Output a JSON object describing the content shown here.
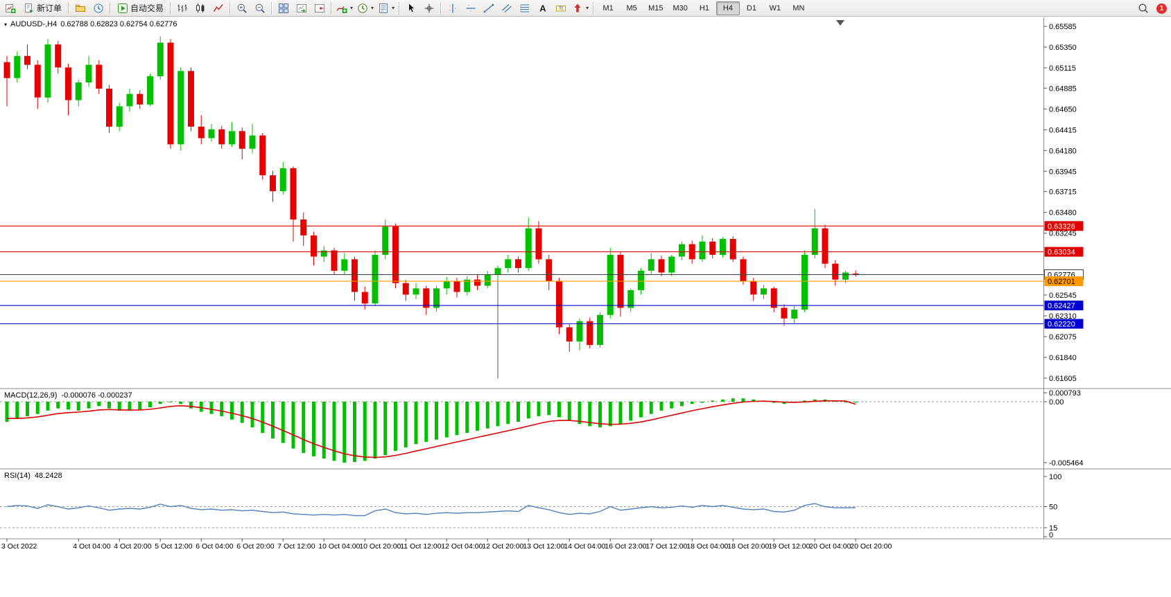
{
  "window": {
    "title": "AUDUSD-,H4",
    "ohlc": "0.62788 0.62823 0.62754 0.62776"
  },
  "toolbar": {
    "groups": [
      {
        "items": [
          {
            "name": "new-chart",
            "icon": "new-chart"
          },
          {
            "name": "new-order",
            "icon": "new-order",
            "label": "新订单"
          }
        ]
      },
      {
        "items": [
          {
            "name": "profiles",
            "icon": "profiles"
          },
          {
            "name": "market-watch",
            "icon": "market-watch"
          }
        ]
      },
      {
        "items": [
          {
            "name": "autotrading",
            "icon": "autotrading",
            "label": "自动交易"
          }
        ]
      },
      {
        "items": [
          {
            "name": "bar-chart",
            "icon": "bar-chart"
          },
          {
            "name": "candlestick-chart",
            "icon": "candlestick-chart"
          },
          {
            "name": "line-chart",
            "icon": "line-chart"
          }
        ]
      },
      {
        "items": [
          {
            "name": "zoom-in",
            "icon": "zoom-in"
          },
          {
            "name": "zoom-out",
            "icon": "zoom-out"
          }
        ]
      },
      {
        "items": [
          {
            "name": "tile-windows",
            "icon": "tile-windows"
          },
          {
            "name": "auto-scroll",
            "icon": "auto-scroll"
          },
          {
            "name": "chart-shift",
            "icon": "chart-shift"
          }
        ]
      },
      {
        "items": [
          {
            "name": "indicators",
            "icon": "indicators",
            "dropdown": true
          },
          {
            "name": "periods",
            "icon": "periods",
            "dropdown": true
          },
          {
            "name": "templates",
            "icon": "templates",
            "dropdown": true
          }
        ]
      },
      {
        "items": [
          {
            "name": "cursor",
            "icon": "cursor"
          },
          {
            "name": "crosshair",
            "icon": "crosshair"
          }
        ]
      },
      {
        "items": [
          {
            "name": "vertical-line",
            "icon": "vertical-line"
          },
          {
            "name": "horizontal-line",
            "icon": "horizontal-line"
          },
          {
            "name": "trendline",
            "icon": "trendline"
          },
          {
            "name": "equidistant-channel",
            "icon": "channel"
          },
          {
            "name": "fibonacci",
            "icon": "fibonacci"
          },
          {
            "name": "text",
            "icon": "text"
          },
          {
            "name": "text-label",
            "icon": "text-label"
          },
          {
            "name": "arrows",
            "icon": "arrows",
            "dropdown": true
          }
        ]
      }
    ],
    "timeframes": [
      "M1",
      "M5",
      "M15",
      "M30",
      "H1",
      "H4",
      "D1",
      "W1",
      "MN"
    ],
    "active_timeframe": "H4",
    "notification_badge": "1"
  },
  "chart_data": [
    {
      "type": "candlestick",
      "symbol": "AUDUSD-",
      "timeframe": "H4",
      "ohlc_readout": {
        "open": "0.62788",
        "high": "0.62823",
        "low": "0.62754",
        "close": "0.62776"
      },
      "colors": {
        "bull": "#00c000",
        "bear": "#e60000"
      },
      "ylim": [
        0.61605,
        0.65585
      ],
      "y_axis_labels": [
        "0.65585",
        "0.65350",
        "0.65115",
        "0.64885",
        "0.64650",
        "0.64415",
        "0.64180",
        "0.63945",
        "0.63715",
        "0.63480",
        "0.63245",
        "0.62545",
        "0.62310",
        "0.62075",
        "0.61840",
        "0.61605"
      ],
      "x_labels": [
        {
          "i": 0,
          "t": "3 Oct 2022"
        },
        {
          "i": 7,
          "t": "4 Oct 04:00"
        },
        {
          "i": 11,
          "t": "4 Oct 20:00"
        },
        {
          "i": 15,
          "t": "5 Oct 12:00"
        },
        {
          "i": 19,
          "t": "6 Oct 04:00"
        },
        {
          "i": 23,
          "t": "6 Oct 20:00"
        },
        {
          "i": 27,
          "t": "7 Oct 12:00"
        },
        {
          "i": 31,
          "t": "10 Oct 04:00"
        },
        {
          "i": 35,
          "t": "10 Oct 20:00"
        },
        {
          "i": 39,
          "t": "11 Oct 12:00"
        },
        {
          "i": 43,
          "t": "12 Oct 04:00"
        },
        {
          "i": 47,
          "t": "12 Oct 20:00"
        },
        {
          "i": 51,
          "t": "13 Oct 12:00"
        },
        {
          "i": 55,
          "t": "14 Oct 04:00"
        },
        {
          "i": 59,
          "t": "16 Oct 23:00"
        },
        {
          "i": 63,
          "t": "17 Oct 12:00"
        },
        {
          "i": 67,
          "t": "18 Oct 04:00"
        },
        {
          "i": 71,
          "t": "18 Oct 20:00"
        },
        {
          "i": 75,
          "t": "19 Oct 12:00"
        },
        {
          "i": 79,
          "t": "20 Oct 04:00"
        },
        {
          "i": 83,
          "t": "20 Oct 20:00"
        }
      ],
      "levels": [
        {
          "price": 0.63326,
          "label": "0.63326",
          "line_color": "#e00000",
          "tag_bg": "#e00000",
          "tag_fg": "#ffffff",
          "role": "resistance"
        },
        {
          "price": 0.63034,
          "label": "0.63034",
          "line_color": "#e00000",
          "tag_bg": "#e00000",
          "tag_fg": "#ffffff",
          "role": "resistance"
        },
        {
          "price": 0.62776,
          "label": "0.62776",
          "line_color": "#404040",
          "tag_bg": "#ffffff",
          "tag_fg": "#000000",
          "tag_border": "#404040",
          "role": "current-price"
        },
        {
          "price": 0.62701,
          "label": "0.62701",
          "line_color": "#ff9900",
          "tag_bg": "#ff9900",
          "tag_fg": "#000000",
          "role": "orange-level"
        },
        {
          "price": 0.62427,
          "label": "0.62427",
          "line_color": "#0000d0",
          "tag_bg": "#0000d0",
          "tag_fg": "#ffffff",
          "role": "support"
        },
        {
          "price": 0.6222,
          "label": "0.62220",
          "line_color": "#0000d0",
          "tag_bg": "#0000d0",
          "tag_fg": "#ffffff",
          "role": "support"
        }
      ],
      "vline_object": {
        "index": 48,
        "from_price": 0.628,
        "to_price": 0.616
      },
      "candles": [
        [
          0.6518,
          0.6525,
          0.6468,
          0.65
        ],
        [
          0.65,
          0.653,
          0.6495,
          0.6525
        ],
        [
          0.6525,
          0.6538,
          0.651,
          0.6515
        ],
        [
          0.6515,
          0.652,
          0.6465,
          0.6478
        ],
        [
          0.6478,
          0.6544,
          0.6472,
          0.6538
        ],
        [
          0.6538,
          0.6542,
          0.6505,
          0.6512
        ],
        [
          0.6512,
          0.6516,
          0.6458,
          0.6475
        ],
        [
          0.6475,
          0.6498,
          0.6468,
          0.6495
        ],
        [
          0.6495,
          0.6525,
          0.649,
          0.6515
        ],
        [
          0.6515,
          0.652,
          0.6482,
          0.6488
        ],
        [
          0.6488,
          0.6492,
          0.6438,
          0.6445
        ],
        [
          0.6445,
          0.6472,
          0.644,
          0.6468
        ],
        [
          0.6468,
          0.6488,
          0.6462,
          0.6482
        ],
        [
          0.6482,
          0.6486,
          0.6465,
          0.647
        ],
        [
          0.647,
          0.6505,
          0.6468,
          0.6502
        ],
        [
          0.6502,
          0.6547,
          0.6498,
          0.654
        ],
        [
          0.654,
          0.6544,
          0.642,
          0.6425
        ],
        [
          0.6425,
          0.6512,
          0.6418,
          0.6508
        ],
        [
          0.6508,
          0.6512,
          0.644,
          0.6445
        ],
        [
          0.6445,
          0.6458,
          0.6425,
          0.6432
        ],
        [
          0.6432,
          0.6448,
          0.6428,
          0.6442
        ],
        [
          0.6442,
          0.6446,
          0.642,
          0.6425
        ],
        [
          0.6425,
          0.645,
          0.6422,
          0.644
        ],
        [
          0.644,
          0.6444,
          0.6408,
          0.642
        ],
        [
          0.642,
          0.6448,
          0.6415,
          0.6435
        ],
        [
          0.6435,
          0.6438,
          0.6385,
          0.639
        ],
        [
          0.639,
          0.6395,
          0.636,
          0.6372
        ],
        [
          0.6372,
          0.6405,
          0.6368,
          0.6398
        ],
        [
          0.6398,
          0.64,
          0.6315,
          0.634
        ],
        [
          0.634,
          0.6348,
          0.631,
          0.6322
        ],
        [
          0.6322,
          0.6326,
          0.6288,
          0.6298
        ],
        [
          0.6298,
          0.631,
          0.6292,
          0.6305
        ],
        [
          0.6305,
          0.6308,
          0.6278,
          0.6282
        ],
        [
          0.6282,
          0.6302,
          0.6278,
          0.6295
        ],
        [
          0.6295,
          0.6298,
          0.6248,
          0.6258
        ],
        [
          0.6258,
          0.6264,
          0.6238,
          0.6245
        ],
        [
          0.6245,
          0.6305,
          0.6242,
          0.63
        ],
        [
          0.63,
          0.634,
          0.6295,
          0.6332
        ],
        [
          0.6332,
          0.6335,
          0.6262,
          0.6268
        ],
        [
          0.6268,
          0.6272,
          0.6248,
          0.6255
        ],
        [
          0.6255,
          0.6268,
          0.625,
          0.6262
        ],
        [
          0.6262,
          0.6265,
          0.6232,
          0.624
        ],
        [
          0.624,
          0.6265,
          0.6236,
          0.6262
        ],
        [
          0.6262,
          0.6275,
          0.6255,
          0.627
        ],
        [
          0.627,
          0.6274,
          0.6252,
          0.6258
        ],
        [
          0.6258,
          0.6276,
          0.6254,
          0.6272
        ],
        [
          0.6272,
          0.6278,
          0.626,
          0.6265
        ],
        [
          0.6265,
          0.6282,
          0.6262,
          0.6278
        ],
        [
          0.6278,
          0.6288,
          0.6272,
          0.6285
        ],
        [
          0.6285,
          0.63,
          0.628,
          0.6295
        ],
        [
          0.6295,
          0.6298,
          0.628,
          0.6285
        ],
        [
          0.6285,
          0.6342,
          0.6282,
          0.633
        ],
        [
          0.633,
          0.6338,
          0.629,
          0.6295
        ],
        [
          0.6295,
          0.63,
          0.626,
          0.627
        ],
        [
          0.627,
          0.6274,
          0.621,
          0.6218
        ],
        [
          0.6218,
          0.6222,
          0.619,
          0.6202
        ],
        [
          0.6202,
          0.6228,
          0.6192,
          0.6225
        ],
        [
          0.6225,
          0.6229,
          0.6194,
          0.6198
        ],
        [
          0.6198,
          0.6235,
          0.6195,
          0.6232
        ],
        [
          0.6232,
          0.6308,
          0.6228,
          0.63
        ],
        [
          0.63,
          0.6304,
          0.623,
          0.624
        ],
        [
          0.624,
          0.6262,
          0.6235,
          0.626
        ],
        [
          0.626,
          0.6285,
          0.6255,
          0.6282
        ],
        [
          0.6282,
          0.6302,
          0.6278,
          0.6295
        ],
        [
          0.6295,
          0.6299,
          0.6276,
          0.628
        ],
        [
          0.628,
          0.63,
          0.6276,
          0.6298
        ],
        [
          0.6298,
          0.6315,
          0.6294,
          0.6312
        ],
        [
          0.6312,
          0.6316,
          0.629,
          0.6295
        ],
        [
          0.6295,
          0.6322,
          0.6292,
          0.6315
        ],
        [
          0.6315,
          0.6319,
          0.6296,
          0.63
        ],
        [
          0.63,
          0.632,
          0.6297,
          0.6318
        ],
        [
          0.6318,
          0.6321,
          0.6292,
          0.6295
        ],
        [
          0.6295,
          0.6298,
          0.6266,
          0.627
        ],
        [
          0.627,
          0.6274,
          0.6248,
          0.6255
        ],
        [
          0.6255,
          0.6266,
          0.625,
          0.6262
        ],
        [
          0.6262,
          0.6264,
          0.6235,
          0.624
        ],
        [
          0.624,
          0.6244,
          0.622,
          0.6228
        ],
        [
          0.6228,
          0.6242,
          0.6222,
          0.6238
        ],
        [
          0.6238,
          0.6305,
          0.6235,
          0.63
        ],
        [
          0.63,
          0.6352,
          0.6296,
          0.633
        ],
        [
          0.633,
          0.6334,
          0.6285,
          0.629
        ],
        [
          0.629,
          0.6294,
          0.6265,
          0.6272
        ],
        [
          0.6272,
          0.6282,
          0.6268,
          0.628
        ],
        [
          0.62788,
          0.62823,
          0.62754,
          0.62776
        ]
      ]
    },
    {
      "type": "macd",
      "label": "MACD(12,26,9)",
      "values_text": "-0.000076 -0.000237",
      "colors": {
        "histogram": "#00c000",
        "signal": "#e00000"
      },
      "axis": [
        {
          "v": 0.000793,
          "t": "0.000793"
        },
        {
          "v": 0,
          "t": "0.00"
        },
        {
          "v": -0.005464,
          "t": "-0.005464"
        }
      ],
      "ylim": [
        -0.005464,
        0.000793
      ],
      "histogram": [
        -0.0018,
        -0.0015,
        -0.0013,
        -0.0011,
        -0.0008,
        -0.0006,
        -0.0007,
        -0.0008,
        -0.0006,
        -0.0004,
        -0.0006,
        -0.0008,
        -0.0008,
        -0.0007,
        -0.0005,
        -0.0002,
        0,
        -0.0002,
        -0.0006,
        -0.0009,
        -0.0011,
        -0.0013,
        -0.0016,
        -0.0019,
        -0.0023,
        -0.0028,
        -0.0033,
        -0.0037,
        -0.0042,
        -0.0046,
        -0.0049,
        -0.0051,
        -0.0053,
        -0.005464,
        -0.0054,
        -0.0053,
        -0.0051,
        -0.0048,
        -0.0044,
        -0.0041,
        -0.0038,
        -0.0036,
        -0.0034,
        -0.0032,
        -0.003,
        -0.0028,
        -0.0026,
        -0.0024,
        -0.0022,
        -0.002,
        -0.0018,
        -0.0015,
        -0.0013,
        -0.0012,
        -0.0014,
        -0.0017,
        -0.002,
        -0.0022,
        -0.0023,
        -0.0022,
        -0.002,
        -0.0017,
        -0.0014,
        -0.0011,
        -0.0008,
        -0.0006,
        -0.0004,
        -0.0002,
        -0.0001,
        0.0001,
        0.0002,
        0.0003,
        0.0003,
        0.0002,
        0.0001,
        -0.0001,
        -0.0002,
        -0.0001,
        0.0001,
        0.0002,
        0.0002,
        0.0001,
        0,
        -7.6e-05
      ],
      "signal": [
        -0.0015,
        -0.0015,
        -0.00145,
        -0.00136,
        -0.00122,
        -0.00107,
        -0.00098,
        -0.00093,
        -0.00085,
        -0.00074,
        -0.0007,
        -0.00073,
        -0.00075,
        -0.00074,
        -0.00068,
        -0.00056,
        -0.00042,
        -0.00036,
        -0.00042,
        -0.00054,
        -0.00068,
        -0.00084,
        -0.00103,
        -0.00125,
        -0.00151,
        -0.00183,
        -0.0022,
        -0.00258,
        -0.00298,
        -0.00339,
        -0.00377,
        -0.0041,
        -0.0044,
        -0.00467,
        -0.00485,
        -0.00496,
        -0.005,
        -0.00495,
        -0.00481,
        -0.00463,
        -0.00442,
        -0.00422,
        -0.00401,
        -0.00381,
        -0.00361,
        -0.00341,
        -0.0032,
        -0.003,
        -0.0028,
        -0.0026,
        -0.0024,
        -0.00218,
        -0.00196,
        -0.00177,
        -0.00168,
        -0.00168,
        -0.00176,
        -0.00187,
        -0.00198,
        -0.00203,
        -0.00202,
        -0.00194,
        -0.00181,
        -0.00163,
        -0.00142,
        -0.00122,
        -0.00101,
        -0.00081,
        -0.00063,
        -0.00045,
        -0.00029,
        -0.00014,
        -3e-05,
        3e-05,
        5e-05,
        1e-05,
        -4e-05,
        -6e-05,
        -2e-05,
        4e-05,
        8e-05,
        8e-05,
        6e-05,
        -0.000237
      ]
    },
    {
      "type": "rsi",
      "label": "RSI(14)",
      "value_text": "48.2428",
      "color": "#4f81bd",
      "axis": [
        {
          "v": 100,
          "t": "100"
        },
        {
          "v": 50,
          "t": "50"
        },
        {
          "v": 15,
          "t": "15"
        },
        {
          "v": 0,
          "t": "0"
        }
      ],
      "levels": [
        50,
        15
      ],
      "ylim": [
        0,
        100
      ],
      "values": [
        50,
        52,
        51,
        47,
        53,
        50,
        46,
        48,
        51,
        48,
        44,
        46,
        47,
        46,
        49,
        54,
        50,
        52,
        47,
        45,
        46,
        44,
        45,
        43,
        44,
        42,
        40,
        41,
        38,
        37,
        36,
        37,
        36,
        37,
        35,
        35,
        43,
        46,
        40,
        38,
        39,
        37,
        39,
        40,
        39,
        40,
        40,
        41,
        42,
        43,
        42,
        52,
        48,
        45,
        40,
        37,
        39,
        38,
        42,
        50,
        44,
        46,
        48,
        50,
        48,
        49,
        51,
        49,
        52,
        50,
        52,
        49,
        46,
        45,
        46,
        42,
        41,
        44,
        52,
        55,
        50,
        48,
        48,
        48.24
      ]
    }
  ]
}
